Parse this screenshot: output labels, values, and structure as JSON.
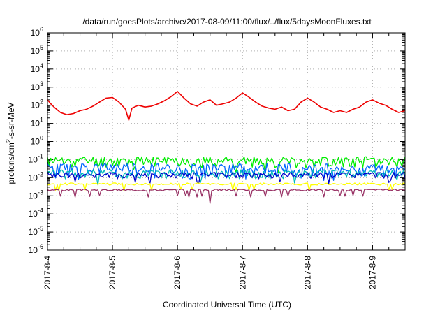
{
  "chart_data": {
    "type": "line",
    "title": "/data/run/goesPlots/archive/2017-08-09/11:00/flux/../flux/5daysMoonFluxes.txt",
    "xlabel": "Coordinated Universal Time (UTC)",
    "ylabel": "protons/cm2-s-sr-MeV",
    "y_scale": "log",
    "ylim_exponents": [
      -6,
      6
    ],
    "xlim_days": [
      0,
      5.5
    ],
    "x_tick_labels": [
      "2017-8-4",
      "2017-8-5",
      "2017-8-6",
      "2017-8-7",
      "2017-8-8",
      "2017-8-9"
    ],
    "grid": true,
    "legend": "none",
    "series": [
      {
        "color": "#ee0000",
        "points": [
          [
            0,
            200
          ],
          [
            0.05,
            120
          ],
          [
            0.1,
            80
          ],
          [
            0.2,
            40
          ],
          [
            0.3,
            30
          ],
          [
            0.4,
            35
          ],
          [
            0.5,
            50
          ],
          [
            0.6,
            60
          ],
          [
            0.7,
            90
          ],
          [
            0.8,
            150
          ],
          [
            0.9,
            250
          ],
          [
            1.0,
            270
          ],
          [
            1.1,
            150
          ],
          [
            1.2,
            60
          ],
          [
            1.25,
            15
          ],
          [
            1.3,
            70
          ],
          [
            1.4,
            100
          ],
          [
            1.5,
            80
          ],
          [
            1.6,
            90
          ],
          [
            1.7,
            120
          ],
          [
            1.8,
            180
          ],
          [
            1.9,
            300
          ],
          [
            2.0,
            580
          ],
          [
            2.1,
            250
          ],
          [
            2.2,
            120
          ],
          [
            2.3,
            90
          ],
          [
            2.4,
            150
          ],
          [
            2.5,
            200
          ],
          [
            2.6,
            100
          ],
          [
            2.7,
            120
          ],
          [
            2.8,
            150
          ],
          [
            2.9,
            250
          ],
          [
            3.0,
            480
          ],
          [
            3.1,
            280
          ],
          [
            3.2,
            150
          ],
          [
            3.3,
            90
          ],
          [
            3.4,
            70
          ],
          [
            3.5,
            60
          ],
          [
            3.6,
            80
          ],
          [
            3.7,
            50
          ],
          [
            3.8,
            60
          ],
          [
            3.9,
            150
          ],
          [
            4.0,
            250
          ],
          [
            4.1,
            150
          ],
          [
            4.2,
            80
          ],
          [
            4.3,
            60
          ],
          [
            4.4,
            40
          ],
          [
            4.5,
            50
          ],
          [
            4.6,
            40
          ],
          [
            4.7,
            60
          ],
          [
            4.8,
            80
          ],
          [
            4.9,
            150
          ],
          [
            5.0,
            200
          ],
          [
            5.1,
            130
          ],
          [
            5.2,
            100
          ],
          [
            5.3,
            60
          ],
          [
            5.4,
            40
          ],
          [
            5.5,
            50
          ]
        ]
      },
      {
        "color": "#00ee00",
        "base": 0.09,
        "amp": 0.28,
        "seed": 11
      },
      {
        "color": "#0066ff",
        "base": 0.035,
        "amp": 0.35,
        "seed": 23
      },
      {
        "color": "#00bbbb",
        "base": 0.018,
        "amp": 0.25,
        "seed": 37
      },
      {
        "color": "#0000cc",
        "base": 0.014,
        "amp": 0.18,
        "seed": 41
      },
      {
        "color": "#ffff00",
        "base": 0.0045,
        "amp": 0.06,
        "seed": 53
      },
      {
        "color": "#993366",
        "base": 0.0021,
        "amp": 0.05,
        "seed": 67
      }
    ]
  }
}
